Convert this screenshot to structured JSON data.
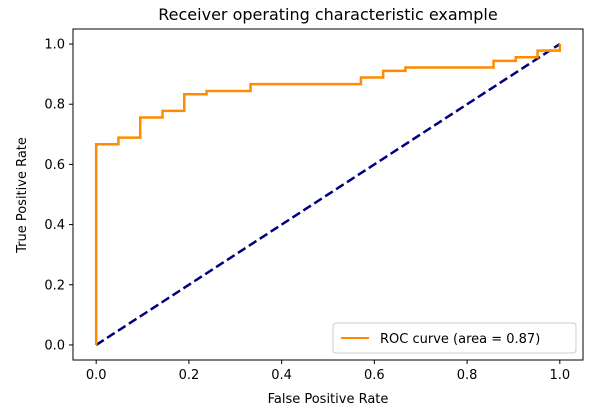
{
  "chart_data": {
    "type": "line",
    "title": "Receiver operating characteristic example",
    "xlabel": "False Positive Rate",
    "ylabel": "True Positive Rate",
    "xlim": [
      -0.05,
      1.05
    ],
    "ylim": [
      -0.05,
      1.05
    ],
    "xticks": [
      "0.0",
      "0.2",
      "0.4",
      "0.6",
      "0.8",
      "1.0"
    ],
    "yticks": [
      "0.0",
      "0.2",
      "0.4",
      "0.6",
      "0.8",
      "1.0"
    ],
    "grid": false,
    "legend_position": "lower-right",
    "series": [
      {
        "name": "ROC curve (area = 0.87)",
        "color": "#ff8c00",
        "style": "solid",
        "x": [
          0.0,
          0.0,
          0.0,
          0.048,
          0.048,
          0.095,
          0.095,
          0.143,
          0.143,
          0.19,
          0.19,
          0.238,
          0.238,
          0.333,
          0.333,
          0.571,
          0.571,
          0.619,
          0.619,
          0.667,
          0.667,
          0.857,
          0.857,
          0.905,
          0.905,
          0.952,
          0.952,
          1.0,
          1.0
        ],
        "y": [
          0.0,
          0.022,
          0.667,
          0.667,
          0.689,
          0.689,
          0.756,
          0.756,
          0.778,
          0.778,
          0.833,
          0.833,
          0.844,
          0.844,
          0.867,
          0.867,
          0.889,
          0.889,
          0.911,
          0.911,
          0.922,
          0.922,
          0.944,
          0.944,
          0.956,
          0.956,
          0.978,
          0.978,
          1.0
        ]
      },
      {
        "name": "",
        "color": "#000080",
        "style": "dashed",
        "x": [
          0.0,
          1.0
        ],
        "y": [
          0.0,
          1.0
        ]
      }
    ]
  }
}
